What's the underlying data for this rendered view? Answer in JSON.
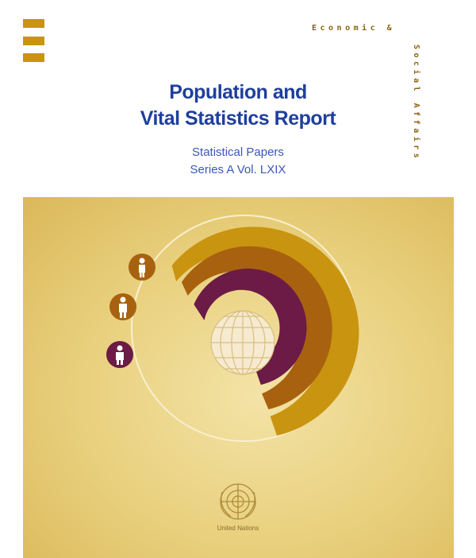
{
  "cover": {
    "header_top": "Economic &",
    "header_side": "Social Affairs",
    "title_line1": "Population and",
    "title_line2": "Vital Statistics Report",
    "subtitle_line1": "Statistical Papers",
    "subtitle_line2": "Series A Vol. LXIX",
    "publisher": "United Nations"
  },
  "colors": {
    "title": "#1f3f9c",
    "subtitle": "#3a57b8",
    "gold": "#c9940f",
    "brown": "#a8620f",
    "purple": "#6b1b46",
    "panel": "#e8cf7c"
  },
  "icons": [
    "child-figure-icon",
    "adult-figure-icon",
    "elderly-figure-icon",
    "globe-icon",
    "un-emblem-icon"
  ]
}
